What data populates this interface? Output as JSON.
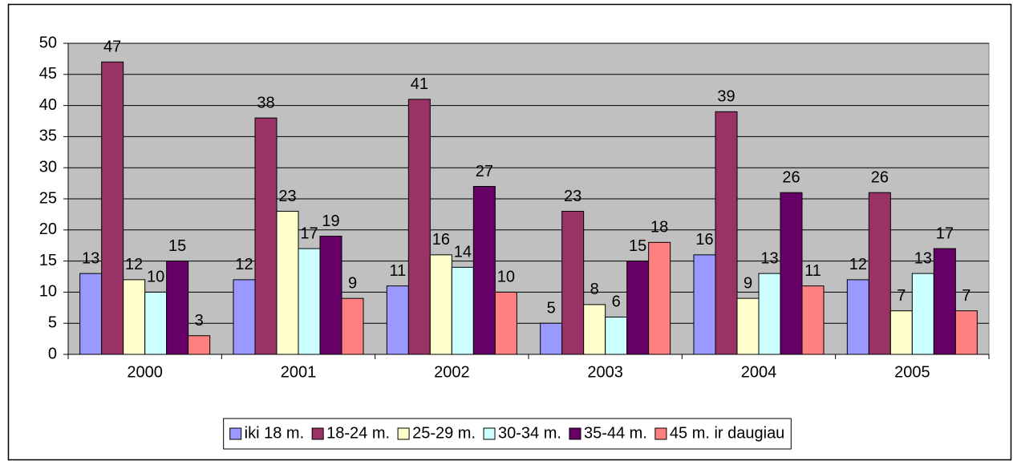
{
  "chart_data": {
    "type": "bar",
    "categories": [
      "2000",
      "2001",
      "2002",
      "2003",
      "2004",
      "2005"
    ],
    "series": [
      {
        "name": "iki 18 m.",
        "color": "#9999ff",
        "values": [
          13,
          12,
          11,
          5,
          16,
          12
        ]
      },
      {
        "name": "18-24 m.",
        "color": "#993366",
        "values": [
          47,
          38,
          41,
          23,
          39,
          26
        ]
      },
      {
        "name": "25-29 m.",
        "color": "#ffffcc",
        "values": [
          12,
          23,
          16,
          8,
          9,
          7
        ]
      },
      {
        "name": "30-34 m.",
        "color": "#ccffff",
        "values": [
          10,
          17,
          14,
          6,
          13,
          13
        ]
      },
      {
        "name": "35-44 m.",
        "color": "#660066",
        "values": [
          15,
          19,
          27,
          15,
          26,
          17
        ]
      },
      {
        "name": "45 m. ir daugiau",
        "color": "#ff8080",
        "values": [
          3,
          9,
          10,
          18,
          11,
          7
        ]
      }
    ],
    "ylim": [
      0,
      50
    ],
    "yticks": [
      0,
      5,
      10,
      15,
      20,
      25,
      30,
      35,
      40,
      45,
      50
    ],
    "grid": true,
    "plot_background": "#c0c0c0",
    "legend": "bottom"
  }
}
